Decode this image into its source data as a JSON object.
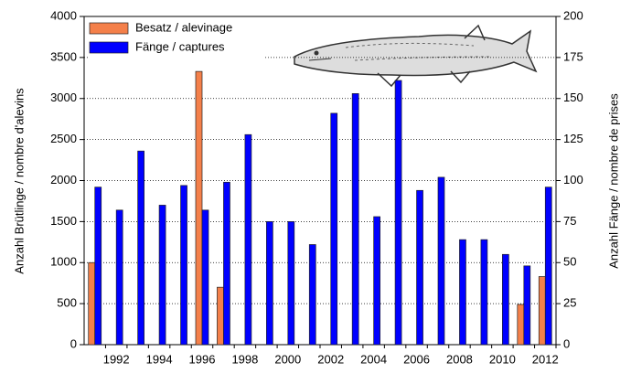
{
  "chart_data": {
    "type": "bar",
    "categories": [
      null,
      "1992",
      null,
      "1994",
      null,
      "1996",
      null,
      "1998",
      null,
      "2000",
      null,
      "2002",
      null,
      "2004",
      null,
      "2006",
      null,
      "2008",
      null,
      "2010",
      null,
      "2012"
    ],
    "series": [
      {
        "name": "Besatz / alevinage",
        "color": "#f4804a",
        "axis": "y",
        "values": [
          1000,
          null,
          null,
          null,
          null,
          3330,
          700,
          null,
          null,
          null,
          null,
          null,
          null,
          null,
          null,
          null,
          null,
          null,
          null,
          null,
          490,
          830
        ]
      },
      {
        "name": "Fänge / captures",
        "color": "#0000ff",
        "axis": "y2",
        "values": [
          96,
          82,
          118,
          85,
          97,
          82,
          99,
          128,
          75,
          75,
          61,
          141,
          153,
          78,
          161,
          94,
          102,
          64,
          64,
          55,
          48,
          96
        ]
      }
    ],
    "ylabel": "Anzahl Brütlinge / nombre d'alevins",
    "y2label": "Anzahl Fänge / nombre de prises",
    "ylim": [
      0,
      4000
    ],
    "yticks": [
      0,
      500,
      1000,
      1500,
      2000,
      2500,
      3000,
      3500,
      4000
    ],
    "y2lim": [
      0,
      200
    ],
    "y2ticks": [
      0,
      25,
      50,
      75,
      100,
      125,
      150,
      175,
      200
    ],
    "grid": true,
    "legend": "upper left"
  }
}
